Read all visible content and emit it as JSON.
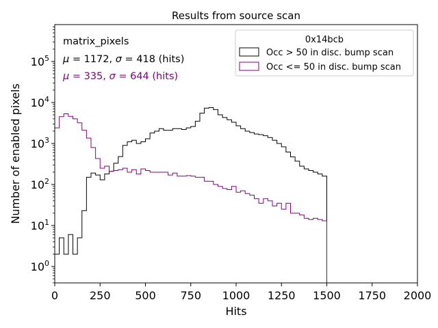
{
  "chart_data": {
    "type": "histogram-step",
    "title": "Results from source scan",
    "xlabel": "Hits",
    "ylabel": "Number of enabled pixels",
    "xlim": [
      0,
      2000
    ],
    "ylim_log10": [
      -0.4,
      5.9
    ],
    "yscale": "log",
    "x_ticks": [
      0,
      250,
      500,
      750,
      1000,
      1250,
      1500,
      1750,
      2000
    ],
    "x_tick_labels": [
      "0",
      "250",
      "500",
      "750",
      "1000",
      "1250",
      "1500",
      "1750",
      "2000"
    ],
    "y_tick_exponents": [
      0,
      1,
      2,
      3,
      4,
      5
    ],
    "y_tick_labels": [
      {
        "base": "10",
        "exp": "0"
      },
      {
        "base": "10",
        "exp": "1"
      },
      {
        "base": "10",
        "exp": "2"
      },
      {
        "base": "10",
        "exp": "3"
      },
      {
        "base": "10",
        "exp": "4"
      },
      {
        "base": "10",
        "exp": "5"
      }
    ],
    "bin_width": 25,
    "legend": {
      "title": "0x14bcb",
      "position": "top-right",
      "entries": [
        {
          "label": "Occ > 50 in disc. bump scan",
          "color": "#000000"
        },
        {
          "label": "Occ <= 50 in disc. bump scan",
          "color": "#800080"
        }
      ]
    },
    "annotations": {
      "name": "matrix_pixels",
      "stats": [
        {
          "mu_sym": "μ",
          "sigma_sym": "σ",
          "mu": "1172",
          "sigma": "418",
          "unit": "(hits)",
          "color": "#000000"
        },
        {
          "mu_sym": "μ",
          "sigma_sym": "σ",
          "mu": "335",
          "sigma": "644",
          "unit": "(hits)",
          "color": "#800080"
        }
      ]
    },
    "series": [
      {
        "name": "Occ > 50 in disc. bump scan",
        "color": "#000000",
        "values": [
          2,
          5,
          2,
          6,
          2,
          5,
          23,
          150,
          190,
          170,
          130,
          180,
          210,
          330,
          480,
          900,
          1100,
          1200,
          1000,
          1100,
          1300,
          1800,
          2000,
          2300,
          2100,
          2100,
          2300,
          2300,
          2200,
          2400,
          2600,
          3500,
          5500,
          7300,
          7500,
          6700,
          5000,
          4300,
          3800,
          3300,
          2700,
          2300,
          2000,
          1850,
          1700,
          1650,
          1550,
          1400,
          1200,
          1000,
          830,
          620,
          470,
          370,
          280,
          240,
          220,
          200,
          180,
          160
        ]
      },
      {
        "name": "Occ <= 50 in disc. bump scan",
        "color": "#800080",
        "values": [
          2400,
          4500,
          5300,
          4600,
          4000,
          3200,
          2100,
          1350,
          800,
          430,
          250,
          280,
          210,
          220,
          230,
          250,
          200,
          230,
          180,
          240,
          220,
          200,
          200,
          200,
          200,
          170,
          190,
          160,
          160,
          165,
          160,
          150,
          150,
          120,
          120,
          100,
          90,
          80,
          75,
          90,
          65,
          70,
          60,
          55,
          45,
          35,
          45,
          40,
          30,
          35,
          25,
          35,
          20,
          20,
          18,
          15,
          14,
          15,
          14,
          13
        ]
      }
    ]
  }
}
